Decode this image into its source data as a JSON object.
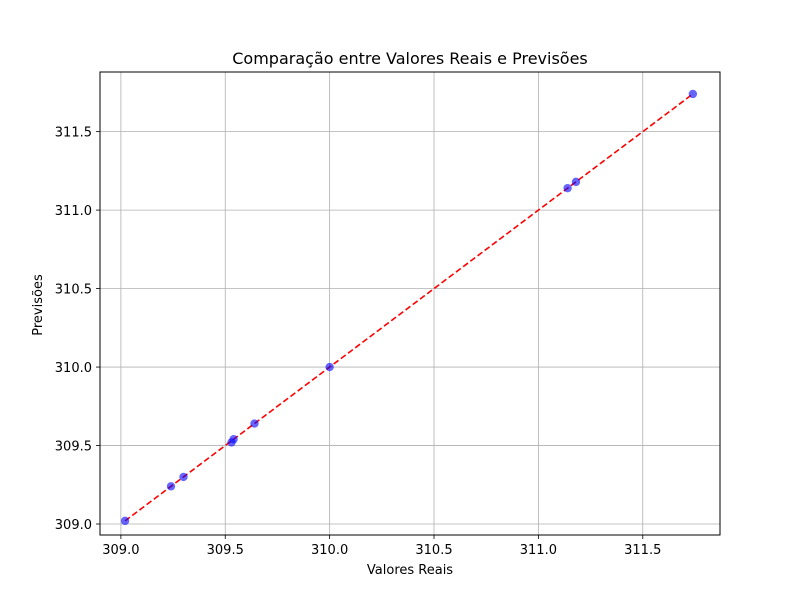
{
  "chart_data": {
    "type": "scatter",
    "title": "Comparação entre Valores Reais e Previsões",
    "xlabel": "Valores Reais",
    "ylabel": "Previsões",
    "xlim": [
      308.9,
      311.87
    ],
    "ylim": [
      308.93,
      311.88
    ],
    "xticks": [
      309.0,
      309.5,
      310.0,
      310.5,
      311.0,
      311.5
    ],
    "xtick_labels": [
      "309.0",
      "309.5",
      "310.0",
      "310.5",
      "311.0",
      "311.5"
    ],
    "yticks": [
      309.0,
      309.5,
      310.0,
      310.5,
      311.0,
      311.5
    ],
    "ytick_labels": [
      "309.0",
      "309.5",
      "310.0",
      "310.5",
      "311.0",
      "311.5"
    ],
    "grid": true,
    "series": [
      {
        "kind": "scatter",
        "color": "#0000ff",
        "opacity": 0.6,
        "points": [
          [
            309.02,
            309.02
          ],
          [
            309.24,
            309.24
          ],
          [
            309.3,
            309.3
          ],
          [
            309.53,
            309.52
          ],
          [
            309.54,
            309.54
          ],
          [
            309.64,
            309.64
          ],
          [
            310.0,
            310.0
          ],
          [
            311.14,
            311.14
          ],
          [
            311.18,
            311.18
          ],
          [
            311.74,
            311.74
          ]
        ]
      },
      {
        "kind": "reference-line",
        "style": "dashed",
        "color": "#ff0000",
        "from": [
          309.02,
          309.02
        ],
        "to": [
          311.74,
          311.74
        ]
      }
    ]
  }
}
